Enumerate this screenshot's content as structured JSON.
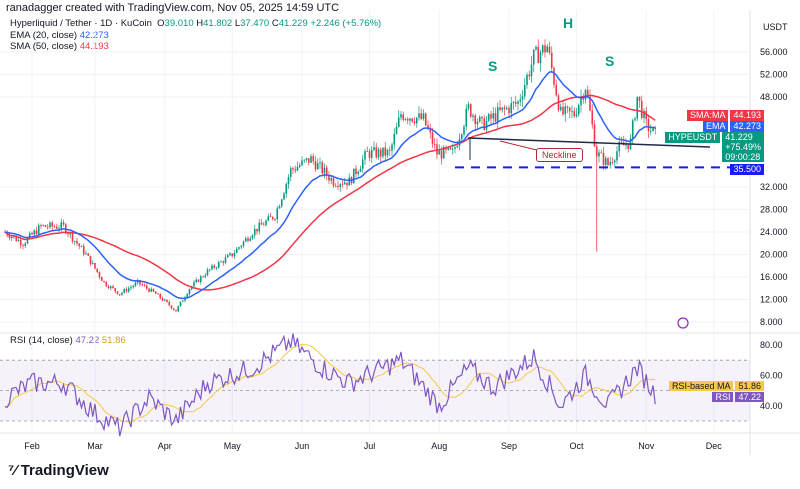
{
  "credit": "ranadagger created with TradingView.com, Nov 05, 2025 14:59 UTC",
  "legend": {
    "symbol": "Hyperliquid / Tether · 1D · KuCoin",
    "o_label": "O",
    "o": "39.010",
    "h_label": "H",
    "h": "41.802",
    "l_label": "L",
    "l": "37.470",
    "c_label": "C",
    "c": "41.229",
    "change": "+2.246 (+5.76%)",
    "ema_label": "EMA (20, close)",
    "ema": "42.273",
    "sma_label": "SMA (50, close)",
    "sma": "44.193",
    "rsi_label": "RSI (14, close)",
    "rsi": "47.22",
    "rsi_ma": "51.86"
  },
  "currency": "USDT",
  "tags": {
    "sma_label": "SMA:MA",
    "sma": "44.193",
    "ema_label": "EMA",
    "ema": "42.273",
    "symbol": "HYPEUSDT",
    "price": "41.229",
    "pct": "+75.49%",
    "countdown": "09:00:28",
    "support": "35.500",
    "rsi_ma_label": "RSI-based MA",
    "rsi_ma": "51.86",
    "rsi_label": "RSI",
    "rsi": "47.22"
  },
  "annotations": {
    "left_shoulder": "S",
    "head": "H",
    "right_shoulder": "S",
    "neckline": "Neckline"
  },
  "colors": {
    "up": "#089981",
    "down": "#f23645",
    "ema": "#2962ff",
    "sma": "#f23645",
    "rsi": "#7e57c2",
    "rsi_ma": "#f7c948",
    "support": "#1a1aff"
  },
  "logo": "TradingView",
  "chart_data": [
    {
      "type": "candlestick",
      "title": "Hyperliquid / Tether · 1D · KuCoin",
      "ylim": [
        8,
        58
      ],
      "price_ticks": [
        "56.000",
        "52.000",
        "48.000",
        "32.000",
        "28.000",
        "24.000",
        "20.000",
        "16.000",
        "12.000",
        "8.000"
      ],
      "x_ticks": [
        "Feb",
        "Mar",
        "Apr",
        "May",
        "Jun",
        "Jul",
        "Aug",
        "Sep",
        "Oct",
        "Nov",
        "Dec"
      ],
      "close_path": [
        [
          "2025-01-20",
          24
        ],
        [
          "2025-01-28",
          22
        ],
        [
          "2025-02-05",
          25
        ],
        [
          "2025-02-15",
          25
        ],
        [
          "2025-02-25",
          20
        ],
        [
          "2025-03-05",
          15
        ],
        [
          "2025-03-12",
          13
        ],
        [
          "2025-03-20",
          15
        ],
        [
          "2025-03-28",
          13
        ],
        [
          "2025-04-06",
          10
        ],
        [
          "2025-04-12",
          14
        ],
        [
          "2025-04-20",
          17
        ],
        [
          "2025-05-01",
          20
        ],
        [
          "2025-05-10",
          24
        ],
        [
          "2025-05-20",
          27
        ],
        [
          "2025-05-27",
          35
        ],
        [
          "2025-06-05",
          37
        ],
        [
          "2025-06-15",
          33
        ],
        [
          "2025-06-22",
          33
        ],
        [
          "2025-06-30",
          38
        ],
        [
          "2025-07-10",
          38
        ],
        [
          "2025-07-15",
          45
        ],
        [
          "2025-07-25",
          44
        ],
        [
          "2025-07-31",
          38
        ],
        [
          "2025-08-07",
          38
        ],
        [
          "2025-08-14",
          46
        ],
        [
          "2025-08-20",
          43
        ],
        [
          "2025-08-27",
          45
        ],
        [
          "2025-09-05",
          47
        ],
        [
          "2025-09-12",
          55
        ],
        [
          "2025-09-18",
          57
        ],
        [
          "2025-09-24",
          45
        ],
        [
          "2025-09-30",
          45
        ],
        [
          "2025-10-05",
          50
        ],
        [
          "2025-10-10",
          38
        ],
        [
          "2025-10-15",
          36
        ],
        [
          "2025-10-20",
          39
        ],
        [
          "2025-10-25",
          40
        ],
        [
          "2025-10-28",
          48
        ],
        [
          "2025-11-01",
          43
        ],
        [
          "2025-11-05",
          41.229
        ]
      ],
      "support_level": 35.5
    },
    {
      "type": "line",
      "title": "RSI (14, close)",
      "ylim": [
        20,
        90
      ],
      "y_ticks": [
        "80.00",
        "60.00",
        "40.00"
      ],
      "bands": [
        70,
        30
      ],
      "series": [
        {
          "name": "RSI",
          "values": [
            [
              "2025-01-20",
              45
            ],
            [
              "2025-02-01",
              55
            ],
            [
              "2025-02-15",
              55
            ],
            [
              "2025-03-01",
              35
            ],
            [
              "2025-03-12",
              25
            ],
            [
              "2025-03-25",
              45
            ],
            [
              "2025-04-06",
              30
            ],
            [
              "2025-04-20",
              55
            ],
            [
              "2025-05-10",
              65
            ],
            [
              "2025-05-27",
              82
            ],
            [
              "2025-06-10",
              65
            ],
            [
              "2025-06-22",
              55
            ],
            [
              "2025-07-15",
              70
            ],
            [
              "2025-08-01",
              40
            ],
            [
              "2025-08-14",
              65
            ],
            [
              "2025-08-25",
              52
            ],
            [
              "2025-09-12",
              72
            ],
            [
              "2025-09-24",
              40
            ],
            [
              "2025-10-05",
              60
            ],
            [
              "2025-10-15",
              40
            ],
            [
              "2025-10-28",
              65
            ],
            [
              "2025-11-05",
              47.22
            ]
          ]
        }
      ]
    }
  ]
}
